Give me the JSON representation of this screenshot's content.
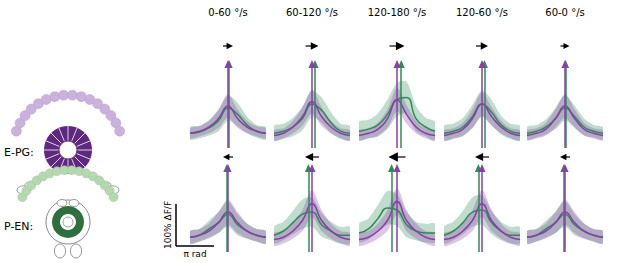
{
  "chart_data": [
    {
      "type": "line",
      "title": "0-60 °/s",
      "x": [
        -3.14,
        -2.36,
        -1.57,
        -0.79,
        0,
        0.79,
        1.57,
        2.36,
        3.14
      ],
      "xlim": [
        -3.14,
        3.14
      ],
      "ylim": [
        -20,
        180
      ],
      "tick_labels": false,
      "series": [
        {
          "color": "#2e8b57",
          "values": [
            15,
            18,
            28,
            45,
            75,
            60,
            35,
            20,
            15
          ],
          "error": [
            15,
            15,
            18,
            25,
            30,
            28,
            20,
            15,
            15
          ],
          "peak": 0.1
        },
        {
          "color": "#8a3ea8",
          "values": [
            15,
            20,
            30,
            50,
            80,
            50,
            30,
            20,
            15
          ],
          "error": [
            12,
            12,
            15,
            22,
            28,
            22,
            15,
            12,
            12
          ],
          "peak": 0
        }
      ]
    },
    {
      "type": "line",
      "title": "60-120 °/s",
      "x": [
        -3.14,
        -2.36,
        -1.57,
        -0.79,
        0,
        0.79,
        1.57,
        2.36,
        3.14
      ],
      "xlim": [
        -3.14,
        3.14
      ],
      "ylim": [
        -20,
        180
      ],
      "tick_labels": false,
      "series": [
        {
          "color": "#2e8b57",
          "values": [
            15,
            20,
            30,
            50,
            85,
            70,
            40,
            20,
            15
          ],
          "error": [
            18,
            18,
            22,
            28,
            32,
            30,
            25,
            18,
            18
          ],
          "peak": 0.25
        },
        {
          "color": "#8a3ea8",
          "values": [
            10,
            15,
            30,
            55,
            90,
            55,
            30,
            15,
            10
          ],
          "error": [
            12,
            12,
            15,
            22,
            28,
            22,
            15,
            12,
            12
          ],
          "peak": 0
        }
      ]
    },
    {
      "type": "line",
      "title": "120-180 °/s",
      "x": [
        -3.14,
        -2.36,
        -1.57,
        -0.79,
        0,
        0.79,
        1.57,
        2.36,
        3.14
      ],
      "xlim": [
        -3.14,
        3.14
      ],
      "ylim": [
        -20,
        180
      ],
      "tick_labels": false,
      "series": [
        {
          "color": "#2e8b57",
          "values": [
            20,
            25,
            35,
            60,
            95,
            100,
            50,
            30,
            20
          ],
          "error": [
            22,
            22,
            28,
            35,
            40,
            38,
            30,
            22,
            22
          ],
          "peak": 0.35
        },
        {
          "color": "#8a3ea8",
          "values": [
            10,
            15,
            25,
            50,
            95,
            60,
            30,
            15,
            10
          ],
          "error": [
            12,
            12,
            15,
            22,
            28,
            22,
            15,
            12,
            12
          ],
          "peak": 0
        }
      ]
    },
    {
      "type": "line",
      "title": "120-60 °/s",
      "x": [
        -3.14,
        -2.36,
        -1.57,
        -0.79,
        0,
        0.79,
        1.57,
        2.36,
        3.14
      ],
      "xlim": [
        -3.14,
        3.14
      ],
      "ylim": [
        -20,
        180
      ],
      "tick_labels": false,
      "series": [
        {
          "color": "#2e8b57",
          "values": [
            15,
            20,
            30,
            55,
            85,
            65,
            35,
            20,
            15
          ],
          "error": [
            18,
            18,
            22,
            28,
            32,
            30,
            22,
            18,
            18
          ],
          "peak": 0.2
        },
        {
          "color": "#8a3ea8",
          "values": [
            10,
            15,
            25,
            50,
            85,
            55,
            30,
            15,
            10
          ],
          "error": [
            12,
            12,
            15,
            22,
            28,
            22,
            15,
            12,
            12
          ],
          "peak": 0
        }
      ]
    },
    {
      "type": "line",
      "title": "60-0 °/s",
      "x": [
        -3.14,
        -2.36,
        -1.57,
        -0.79,
        0,
        0.79,
        1.57,
        2.36,
        3.14
      ],
      "xlim": [
        -3.14,
        3.14
      ],
      "ylim": [
        -20,
        180
      ],
      "tick_labels": false,
      "series": [
        {
          "color": "#2e8b57",
          "values": [
            15,
            20,
            30,
            50,
            75,
            55,
            30,
            20,
            15
          ],
          "error": [
            15,
            15,
            18,
            25,
            30,
            26,
            20,
            15,
            15
          ],
          "peak": 0.05
        },
        {
          "color": "#8a3ea8",
          "values": [
            10,
            15,
            25,
            50,
            80,
            50,
            25,
            15,
            10
          ],
          "error": [
            12,
            12,
            15,
            22,
            28,
            22,
            15,
            12,
            12
          ],
          "peak": 0
        }
      ]
    },
    {
      "type": "line",
      "x": [
        -3.14,
        -2.36,
        -1.57,
        -0.79,
        0,
        0.79,
        1.57,
        2.36,
        3.14
      ],
      "xlim": [
        -3.14,
        3.14
      ],
      "ylim": [
        -20,
        180
      ],
      "tick_labels": false,
      "series": [
        {
          "color": "#2e8b57",
          "values": [
            15,
            20,
            35,
            50,
            70,
            45,
            30,
            20,
            15
          ],
          "error": [
            15,
            15,
            20,
            25,
            30,
            25,
            18,
            15,
            15
          ],
          "peak": -0.1
        },
        {
          "color": "#8a3ea8",
          "values": [
            15,
            20,
            30,
            50,
            75,
            50,
            30,
            20,
            15
          ],
          "error": [
            15,
            15,
            18,
            25,
            30,
            25,
            18,
            15,
            15
          ],
          "peak": 0
        }
      ]
    },
    {
      "type": "line",
      "x": [
        -3.14,
        -2.36,
        -1.57,
        -0.79,
        0,
        0.79,
        1.57,
        2.36,
        3.14
      ],
      "xlim": [
        -3.14,
        3.14
      ],
      "ylim": [
        -20,
        180
      ],
      "tick_labels": false,
      "series": [
        {
          "color": "#2e8b57",
          "values": [
            20,
            30,
            50,
            70,
            75,
            45,
            30,
            20,
            20
          ],
          "error": [
            20,
            22,
            28,
            35,
            35,
            28,
            22,
            20,
            20
          ],
          "peak": -0.3
        },
        {
          "color": "#8a3ea8",
          "values": [
            10,
            15,
            30,
            55,
            95,
            55,
            30,
            15,
            10
          ],
          "error": [
            15,
            15,
            18,
            25,
            32,
            25,
            18,
            15,
            15
          ],
          "peak": 0
        }
      ]
    },
    {
      "type": "line",
      "x": [
        -3.14,
        -2.36,
        -1.57,
        -0.79,
        0,
        0.79,
        1.57,
        2.36,
        3.14
      ],
      "xlim": [
        -3.14,
        3.14
      ],
      "ylim": [
        -20,
        180
      ],
      "tick_labels": false,
      "series": [
        {
          "color": "#2e8b57",
          "values": [
            25,
            35,
            60,
            85,
            80,
            45,
            30,
            25,
            25
          ],
          "error": [
            22,
            25,
            32,
            40,
            38,
            30,
            22,
            22,
            22
          ],
          "peak": -0.45
        },
        {
          "color": "#8a3ea8",
          "values": [
            10,
            15,
            30,
            55,
            100,
            55,
            30,
            15,
            10
          ],
          "error": [
            15,
            15,
            18,
            25,
            32,
            25,
            18,
            15,
            15
          ],
          "peak": 0
        }
      ]
    },
    {
      "type": "line",
      "x": [
        -3.14,
        -2.36,
        -1.57,
        -0.79,
        0,
        0.79,
        1.57,
        2.36,
        3.14
      ],
      "xlim": [
        -3.14,
        3.14
      ],
      "ylim": [
        -20,
        180
      ],
      "tick_labels": false,
      "series": [
        {
          "color": "#2e8b57",
          "values": [
            20,
            30,
            50,
            75,
            80,
            50,
            30,
            20,
            20
          ],
          "error": [
            20,
            22,
            28,
            35,
            35,
            28,
            22,
            20,
            20
          ],
          "peak": -0.3
        },
        {
          "color": "#8a3ea8",
          "values": [
            10,
            15,
            30,
            55,
            95,
            55,
            30,
            15,
            10
          ],
          "error": [
            15,
            15,
            18,
            25,
            32,
            25,
            18,
            15,
            15
          ],
          "peak": 0
        }
      ]
    },
    {
      "type": "line",
      "x": [
        -3.14,
        -2.36,
        -1.57,
        -0.79,
        0,
        0.79,
        1.57,
        2.36,
        3.14
      ],
      "xlim": [
        -3.14,
        3.14
      ],
      "ylim": [
        -20,
        180
      ],
      "tick_labels": false,
      "series": [
        {
          "color": "#2e8b57",
          "values": [
            15,
            20,
            35,
            50,
            70,
            45,
            30,
            20,
            15
          ],
          "error": [
            15,
            15,
            20,
            25,
            30,
            25,
            18,
            15,
            15
          ],
          "peak": -0.1
        },
        {
          "color": "#8a3ea8",
          "values": [
            15,
            20,
            30,
            50,
            75,
            50,
            30,
            20,
            15
          ],
          "error": [
            15,
            15,
            18,
            25,
            30,
            25,
            18,
            15,
            15
          ],
          "peak": 0
        }
      ]
    }
  ],
  "row_labels": [
    "E-PG:",
    "P-EN:"
  ],
  "scale_bar": {
    "y": 100,
    "y_label": "100% ΔF/F",
    "x": 3.14,
    "x_label": "π rad"
  }
}
